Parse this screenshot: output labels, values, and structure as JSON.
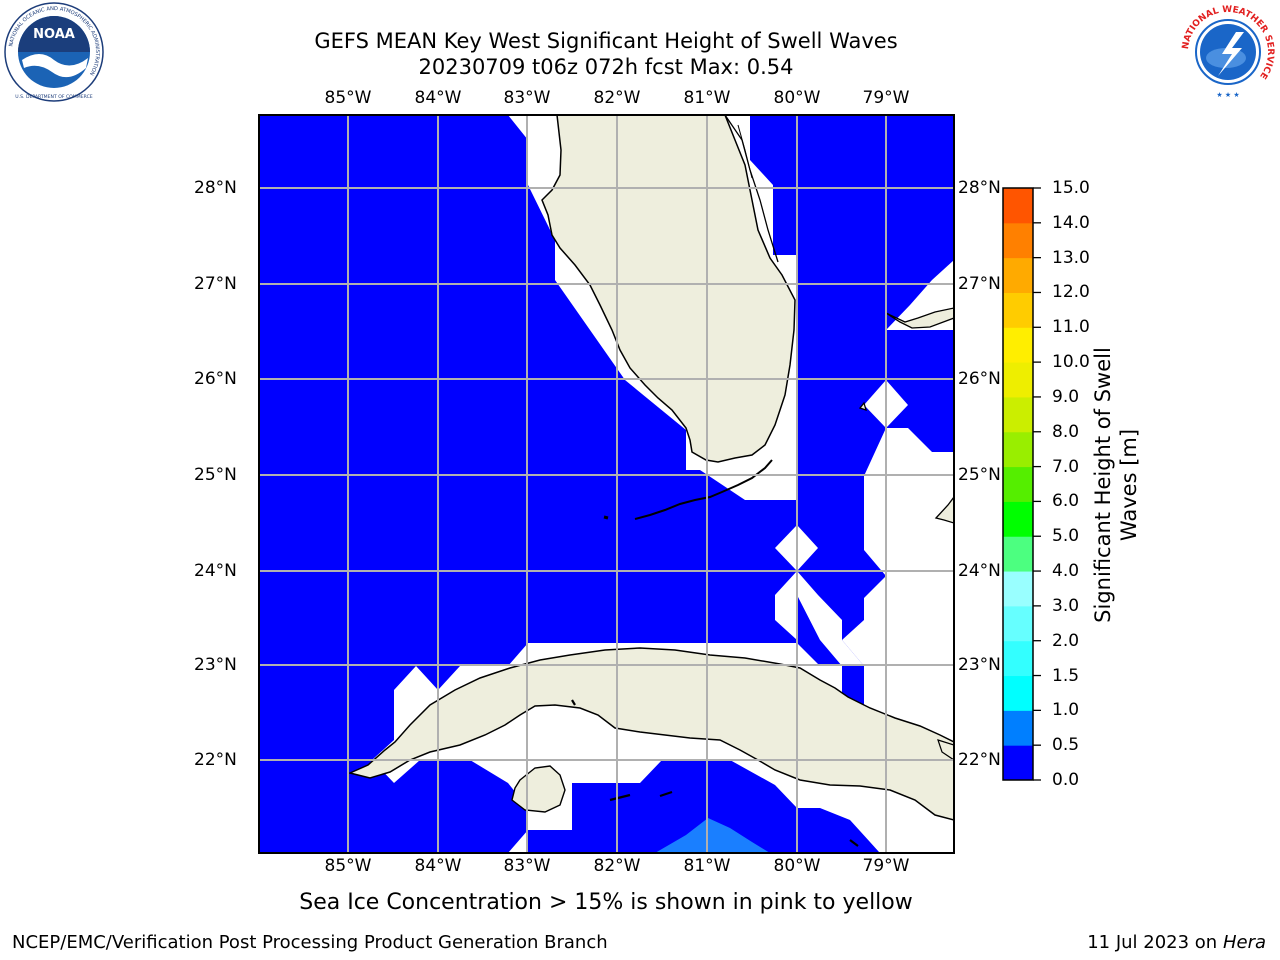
{
  "title": {
    "line1": "GEFS MEAN Key West Significant Height of Swell Waves",
    "line2": "20230709 t06z 072h fcst   Max: 0.54"
  },
  "map": {
    "lon_ticks": [
      "85°W",
      "84°W",
      "83°W",
      "82°W",
      "81°W",
      "80°W",
      "79°W"
    ],
    "lat_ticks": [
      "28°N",
      "27°N",
      "26°N",
      "25°N",
      "24°N",
      "23°N",
      "22°N"
    ],
    "colors": {
      "ocean": "#0000ff",
      "land": "#eeeedd",
      "grid": "#b0b0b0",
      "shallow": "#1a7fff"
    }
  },
  "colorbar": {
    "title_line1": "Significant Height of Swell",
    "title_line2": "Waves [m]",
    "ticks": [
      "15.0",
      "14.0",
      "13.0",
      "12.0",
      "11.0",
      "10.0",
      "9.0",
      "8.0",
      "7.0",
      "6.0",
      "5.0",
      "4.0",
      "3.0",
      "2.0",
      "1.5",
      "1.0",
      "0.5",
      "0.0"
    ],
    "colors_bottom_to_top": [
      "#0000ff",
      "#007fff",
      "#00ffff",
      "#33ffff",
      "#66ffff",
      "#99ffff",
      "#4cff80",
      "#00ff00",
      "#55ee00",
      "#99ee00",
      "#cbee00",
      "#eeee00",
      "#ffee00",
      "#ffcc00",
      "#ffaa00",
      "#ff8000",
      "#ff5500",
      "#ff2a00",
      "#ff0000"
    ]
  },
  "logos": {
    "noaa_text": "NOAA",
    "noaa_ring": "NATIONAL OCEANIC AND ATMOSPHERIC ADMINISTRATION",
    "noaa_ring_bottom": "U.S. DEPARTMENT OF COMMERCE",
    "nws_ring": "NATIONAL WEATHER SERVICE"
  },
  "ice_note": "Sea Ice Concentration > 15% is shown in pink to yellow",
  "footer": {
    "left": "NCEP/EMC/Verification Post Processing Product Generation Branch",
    "right_prefix": "11 Jul 2023 on ",
    "right_host": "Hera"
  }
}
